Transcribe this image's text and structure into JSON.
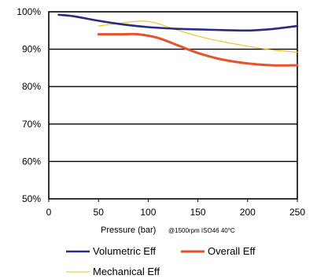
{
  "chart_data": {
    "type": "line",
    "title": "",
    "xlabel": "Pressure (bar)",
    "xlabel_note": "@1500rpm ISO46 40°C",
    "ylabel": "",
    "xlim": [
      0,
      250
    ],
    "ylim": [
      50,
      100
    ],
    "x_ticks": [
      "0",
      "50",
      "100",
      "150",
      "200",
      "250"
    ],
    "y_ticks": [
      "50%",
      "60%",
      "70%",
      "80%",
      "90%",
      "100%"
    ],
    "grid": "horizontal",
    "legend_position": "bottom",
    "series": [
      {
        "name": "Volumetric Eff",
        "color": "#2a2a86",
        "x": [
          10,
          25,
          50,
          75,
          100,
          125,
          150,
          175,
          200,
          225,
          250
        ],
        "y": [
          99.2,
          98.8,
          97.6,
          96.6,
          95.9,
          95.5,
          95.3,
          95.1,
          95.0,
          95.4,
          96.2
        ]
      },
      {
        "name": "Overall Eff",
        "color": "#e8522a",
        "x": [
          50,
          75,
          90,
          110,
          130,
          150,
          175,
          200,
          225,
          250
        ],
        "y": [
          94.0,
          94.0,
          94.0,
          93.0,
          91.0,
          89.0,
          87.2,
          86.2,
          85.7,
          85.7
        ]
      },
      {
        "name": "Mechanical Eff",
        "color": "#f2c21a",
        "x": [
          50,
          70,
          90,
          105,
          125,
          150,
          175,
          200,
          225,
          250
        ],
        "y": [
          96.2,
          96.9,
          97.5,
          97.2,
          95.5,
          93.5,
          92.0,
          90.8,
          89.8,
          89.2
        ]
      }
    ]
  }
}
